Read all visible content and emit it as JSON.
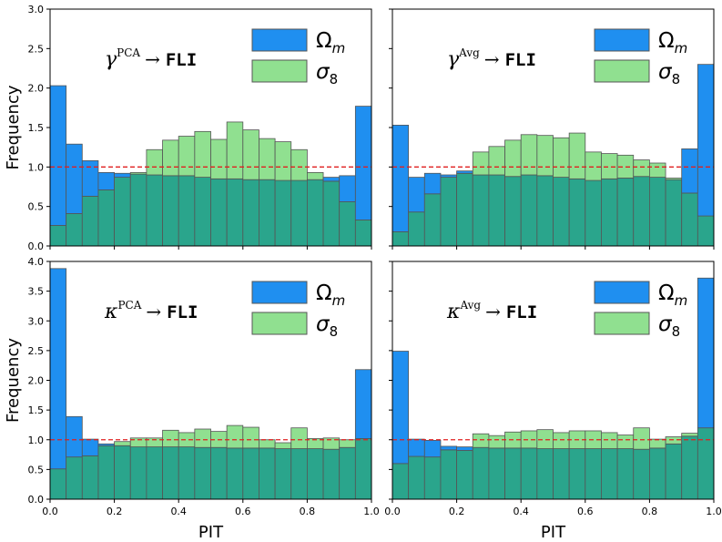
{
  "colors": {
    "omega": "#1f8ff0",
    "sigma": "#90e090",
    "overlap": "#2aa58c",
    "edge": "#555555",
    "reference": "#e02020"
  },
  "chart_data": [
    {
      "type": "bar",
      "panel": "top-left",
      "label": {
        "symbol": "γ",
        "sup": "PCA",
        "arrow": "→",
        "target": "FLI"
      },
      "ylabel": "Frequency",
      "xlabel": "",
      "xlim": [
        0,
        1
      ],
      "ylim": [
        0,
        3.0
      ],
      "yticks": [
        "0.0",
        "0.5",
        "1.0",
        "1.5",
        "2.0",
        "2.5",
        "3.0"
      ],
      "xticks": [],
      "bins": 20,
      "reference_line": 1.0,
      "legend": [
        "Ω",
        "σ"
      ],
      "legend_sub": [
        "m",
        "8"
      ],
      "legend_position": "top-right",
      "series": [
        {
          "name": "Ω",
          "values": [
            2.03,
            1.29,
            1.08,
            0.93,
            0.92,
            0.91,
            0.9,
            0.89,
            0.89,
            0.87,
            0.85,
            0.85,
            0.84,
            0.84,
            0.83,
            0.83,
            0.84,
            0.87,
            0.89,
            1.77
          ]
        },
        {
          "name": "σ",
          "values": [
            0.26,
            0.41,
            0.63,
            0.71,
            0.87,
            0.93,
            1.22,
            1.34,
            1.39,
            1.45,
            1.35,
            1.57,
            1.47,
            1.36,
            1.32,
            1.22,
            0.93,
            0.82,
            0.56,
            0.33
          ]
        }
      ]
    },
    {
      "type": "bar",
      "panel": "top-right",
      "label": {
        "symbol": "γ",
        "sup": "Avg",
        "arrow": "→",
        "target": "FLI"
      },
      "ylabel": "",
      "xlabel": "",
      "xlim": [
        0,
        1
      ],
      "ylim": [
        0,
        3.0
      ],
      "yticks": [],
      "xticks": [],
      "bins": 20,
      "reference_line": 1.0,
      "legend": [
        "Ω",
        "σ"
      ],
      "legend_sub": [
        "m",
        "8"
      ],
      "legend_position": "top-right",
      "series": [
        {
          "name": "Ω",
          "values": [
            1.53,
            0.87,
            0.92,
            0.9,
            0.95,
            0.9,
            0.9,
            0.88,
            0.9,
            0.89,
            0.87,
            0.85,
            0.83,
            0.85,
            0.86,
            0.88,
            0.87,
            0.84,
            1.23,
            2.3
          ]
        },
        {
          "name": "σ",
          "values": [
            0.18,
            0.43,
            0.66,
            0.87,
            0.92,
            1.19,
            1.26,
            1.34,
            1.41,
            1.4,
            1.37,
            1.43,
            1.19,
            1.17,
            1.15,
            1.09,
            1.05,
            0.86,
            0.67,
            0.38
          ]
        }
      ]
    },
    {
      "type": "bar",
      "panel": "bottom-left",
      "label": {
        "symbol": "κ",
        "sup": "PCA",
        "arrow": "→",
        "target": "FLI"
      },
      "ylabel": "Frequency",
      "xlabel": "PIT",
      "xlim": [
        0,
        1
      ],
      "ylim": [
        0,
        4.0
      ],
      "yticks": [
        "0.0",
        "0.5",
        "1.0",
        "1.5",
        "2.0",
        "2.5",
        "3.0",
        "3.5",
        "4.0"
      ],
      "xticks": [
        "0.0",
        "0.2",
        "0.4",
        "0.6",
        "0.8",
        "1.0"
      ],
      "bins": 20,
      "reference_line": 1.0,
      "legend": [
        "Ω",
        "σ"
      ],
      "legend_sub": [
        "m",
        "8"
      ],
      "legend_position": "top-right",
      "series": [
        {
          "name": "Ω",
          "values": [
            3.88,
            1.39,
            1.01,
            0.93,
            0.9,
            0.88,
            0.88,
            0.88,
            0.88,
            0.87,
            0.87,
            0.86,
            0.86,
            0.86,
            0.85,
            0.85,
            0.85,
            0.84,
            0.87,
            2.18
          ]
        },
        {
          "name": "σ",
          "values": [
            0.51,
            0.71,
            0.73,
            0.9,
            0.97,
            1.03,
            1.03,
            1.16,
            1.12,
            1.18,
            1.14,
            1.24,
            1.21,
            1.0,
            0.95,
            1.2,
            1.02,
            1.03,
            1.0,
            1.02
          ]
        }
      ]
    },
    {
      "type": "bar",
      "panel": "bottom-right",
      "label": {
        "symbol": "κ",
        "sup": "Avg",
        "arrow": "→",
        "target": "FLI"
      },
      "ylabel": "",
      "xlabel": "PIT",
      "xlim": [
        0,
        1
      ],
      "ylim": [
        0,
        4.0
      ],
      "yticks": [],
      "xticks": [
        "0.0",
        "0.2",
        "0.4",
        "0.6",
        "0.8",
        "1.0"
      ],
      "bins": 20,
      "reference_line": 1.0,
      "legend": [
        "Ω",
        "σ"
      ],
      "legend_sub": [
        "m",
        "8"
      ],
      "legend_position": "top-right",
      "series": [
        {
          "name": "Ω",
          "values": [
            2.49,
            1.01,
            0.99,
            0.89,
            0.88,
            0.87,
            0.86,
            0.86,
            0.86,
            0.85,
            0.85,
            0.85,
            0.85,
            0.85,
            0.85,
            0.84,
            0.86,
            0.93,
            1.06,
            3.72
          ]
        },
        {
          "name": "σ",
          "values": [
            0.6,
            0.72,
            0.71,
            0.83,
            0.82,
            1.1,
            1.07,
            1.13,
            1.15,
            1.17,
            1.12,
            1.15,
            1.15,
            1.12,
            1.08,
            1.2,
            1.01,
            1.05,
            1.11,
            1.2
          ]
        }
      ]
    }
  ]
}
